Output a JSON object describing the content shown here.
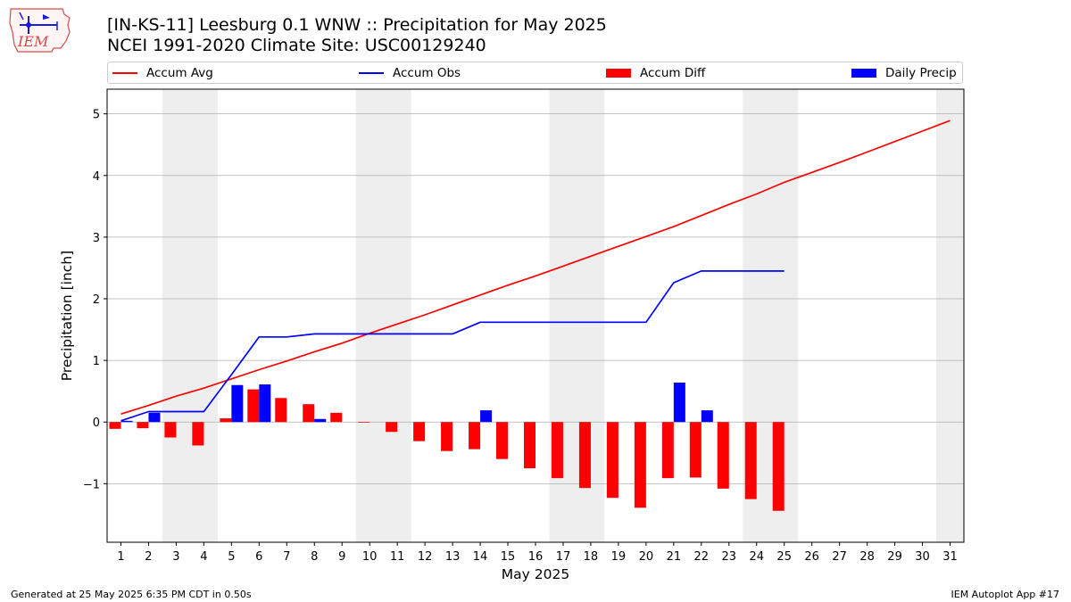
{
  "title_line1": "[IN-KS-11] Leesburg 0.1 WNW :: Precipitation for May 2025",
  "title_line2": "NCEI 1991-2020 Climate Site: USC00129240",
  "logo_text": "IEM",
  "footer_left": "Generated at 25 May 2025 6:35 PM CDT in 0.50s",
  "footer_right": "IEM Autoplot App #17",
  "colors": {
    "avg": "#ff0000",
    "obs": "#0000ff",
    "diff": "#ff0000",
    "daily": "#0000ff",
    "weekend_band": "#eeeeee",
    "grid": "#b0b0b0"
  },
  "chart_data": {
    "type": "bar",
    "xlabel": "May 2025",
    "ylabel": "Precipitation [inch]",
    "xlim": [
      0.5,
      31.5
    ],
    "ylim": [
      -1.95,
      5.4
    ],
    "yticks": [
      -1,
      0,
      1,
      2,
      3,
      4,
      5
    ],
    "ytick_labels": [
      "−1",
      "0",
      "1",
      "2",
      "3",
      "4",
      "5"
    ],
    "days": [
      1,
      2,
      3,
      4,
      5,
      6,
      7,
      8,
      9,
      10,
      11,
      12,
      13,
      14,
      15,
      16,
      17,
      18,
      19,
      20,
      21,
      22,
      23,
      24,
      25,
      26,
      27,
      28,
      29,
      30,
      31
    ],
    "weekend_bands": [
      [
        2.5,
        4.5
      ],
      [
        9.5,
        11.5
      ],
      [
        16.5,
        18.5
      ],
      [
        23.5,
        25.5
      ],
      [
        30.5,
        31.5
      ]
    ],
    "grid": true,
    "legend_position": "top",
    "legend": [
      {
        "key": "avg",
        "label": "Accum Avg",
        "kind": "line"
      },
      {
        "key": "obs",
        "label": "Accum Obs",
        "kind": "line"
      },
      {
        "key": "diff",
        "label": "Accum Diff",
        "kind": "bar"
      },
      {
        "key": "daily",
        "label": "Daily Precip",
        "kind": "bar"
      }
    ],
    "series": [
      {
        "name": "Accum Avg",
        "type": "line",
        "x": [
          1,
          2,
          3,
          4,
          5,
          6,
          7,
          8,
          9,
          10,
          11,
          12,
          13,
          14,
          15,
          16,
          17,
          18,
          19,
          20,
          21,
          22,
          23,
          24,
          25,
          26,
          27,
          28,
          29,
          30,
          31
        ],
        "values": [
          0.13,
          0.27,
          0.42,
          0.55,
          0.7,
          0.85,
          0.99,
          1.14,
          1.28,
          1.44,
          1.59,
          1.74,
          1.9,
          2.06,
          2.22,
          2.37,
          2.53,
          2.69,
          2.85,
          3.01,
          3.17,
          3.35,
          3.53,
          3.7,
          3.89,
          4.05,
          4.21,
          4.38,
          4.55,
          4.72,
          4.89
        ]
      },
      {
        "name": "Accum Obs",
        "type": "line",
        "x": [
          1,
          2,
          3,
          4,
          5,
          6,
          7,
          8,
          9,
          10,
          11,
          12,
          13,
          14,
          15,
          16,
          17,
          18,
          19,
          20,
          21,
          22,
          23,
          24,
          25
        ],
        "values": [
          0.02,
          0.17,
          0.17,
          0.17,
          0.77,
          1.38,
          1.38,
          1.43,
          1.43,
          1.43,
          1.43,
          1.43,
          1.43,
          1.62,
          1.62,
          1.62,
          1.62,
          1.62,
          1.62,
          1.62,
          2.26,
          2.45,
          2.45,
          2.45,
          2.45
        ]
      },
      {
        "name": "Accum Diff",
        "type": "bar",
        "x": [
          1,
          2,
          3,
          4,
          5,
          6,
          7,
          8,
          9,
          10,
          11,
          12,
          13,
          14,
          15,
          16,
          17,
          18,
          19,
          20,
          21,
          22,
          23,
          24,
          25
        ],
        "values": [
          -0.11,
          -0.1,
          -0.25,
          -0.38,
          0.06,
          0.53,
          0.39,
          0.29,
          0.15,
          -0.01,
          -0.16,
          -0.31,
          -0.47,
          -0.44,
          -0.6,
          -0.75,
          -0.91,
          -1.07,
          -1.23,
          -1.39,
          -0.91,
          -0.9,
          -1.08,
          -1.25,
          -1.44
        ]
      },
      {
        "name": "Daily Precip",
        "type": "bar",
        "x": [
          1,
          2,
          3,
          4,
          5,
          6,
          7,
          8,
          9,
          10,
          11,
          12,
          13,
          14,
          15,
          16,
          17,
          18,
          19,
          20,
          21,
          22,
          23,
          24,
          25
        ],
        "values": [
          0.02,
          0.15,
          0,
          0,
          0.6,
          0.61,
          0,
          0.05,
          0,
          0,
          0,
          0,
          0,
          0.19,
          0,
          0,
          0,
          0,
          0,
          0,
          0.64,
          0.19,
          0,
          0,
          0
        ]
      }
    ]
  }
}
